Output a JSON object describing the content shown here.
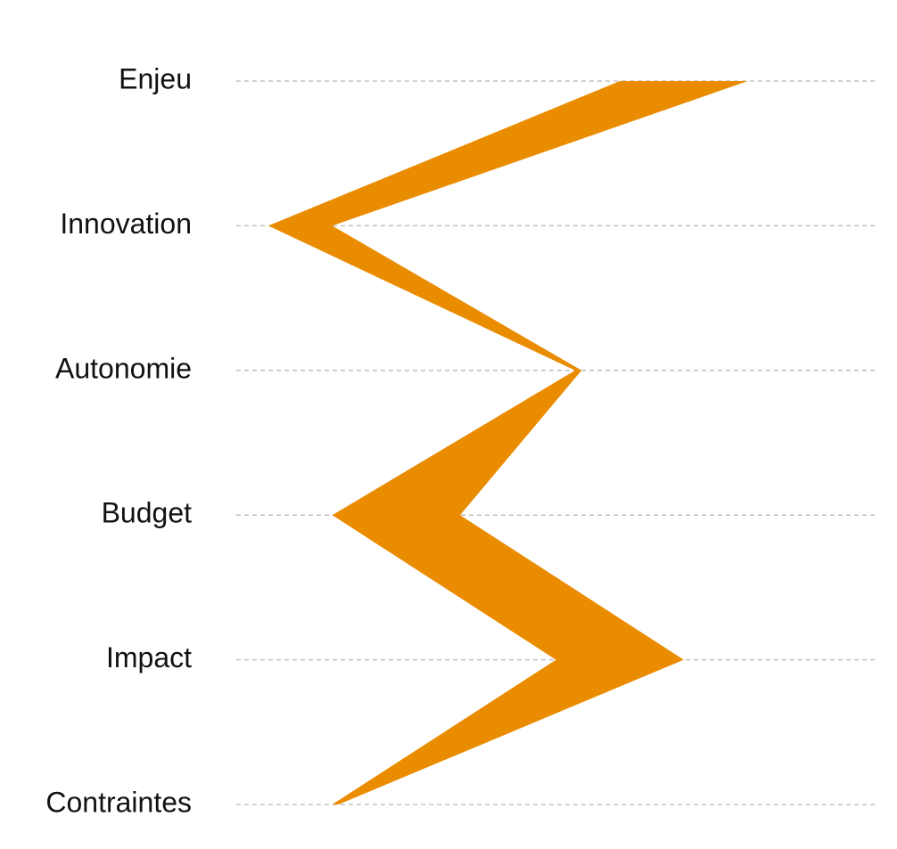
{
  "chart_data": {
    "type": "area",
    "orientation": "vertical-profile",
    "categories": [
      "Enjeu",
      "Innovation",
      "Autonomie",
      "Budget",
      "Impact",
      "Contraintes"
    ],
    "series": [
      {
        "values": [
          0.6,
          0.05,
          0.53,
          0.15,
          0.5,
          0.15
        ],
        "color": "#EA8C00"
      },
      {
        "values": [
          0.8,
          0.15,
          0.54,
          0.35,
          0.7,
          0.16
        ],
        "color": "#EA8C00"
      }
    ],
    "xlim": [
      0,
      1
    ],
    "grid": true,
    "grid_style": "dashed",
    "grid_color": "#B8B8B8",
    "legend": "none"
  }
}
